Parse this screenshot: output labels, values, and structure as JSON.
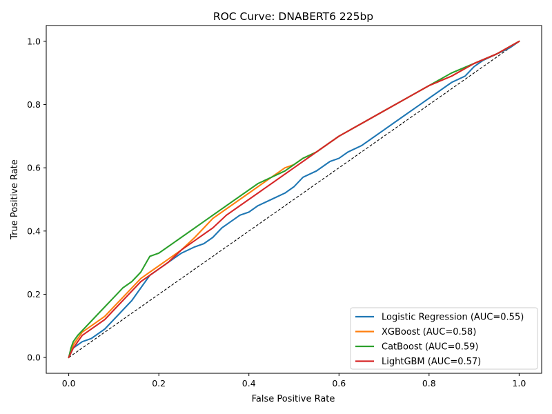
{
  "chart_data": {
    "type": "line",
    "title": "ROC Curve: DNABERT6 225bp",
    "xlabel": "False Positive Rate",
    "ylabel": "True Positive Rate",
    "xlim": [
      -0.05,
      1.05
    ],
    "ylim": [
      -0.05,
      1.05
    ],
    "xticks": [
      0.0,
      0.2,
      0.4,
      0.6,
      0.8,
      1.0
    ],
    "yticks": [
      0.0,
      0.2,
      0.4,
      0.6,
      0.8,
      1.0
    ],
    "tick_labels": [
      "0.0",
      "0.2",
      "0.4",
      "0.6",
      "0.8",
      "1.0"
    ],
    "grid": false,
    "legend_position": "lower right",
    "baseline": {
      "x": [
        0,
        1
      ],
      "y": [
        0,
        1
      ],
      "style": "dashed",
      "color": "#000000"
    },
    "series": [
      {
        "name": "Logistic Regression (AUC=0.55)",
        "color": "#1f77b4",
        "x": [
          0,
          0.01,
          0.03,
          0.05,
          0.08,
          0.1,
          0.12,
          0.14,
          0.16,
          0.18,
          0.2,
          0.22,
          0.25,
          0.28,
          0.3,
          0.32,
          0.34,
          0.36,
          0.38,
          0.4,
          0.42,
          0.45,
          0.48,
          0.5,
          0.52,
          0.55,
          0.58,
          0.6,
          0.62,
          0.65,
          0.68,
          0.7,
          0.72,
          0.75,
          0.78,
          0.8,
          0.82,
          0.85,
          0.88,
          0.9,
          0.92,
          0.95,
          0.98,
          1.0
        ],
        "y": [
          0,
          0.03,
          0.05,
          0.06,
          0.09,
          0.12,
          0.15,
          0.18,
          0.22,
          0.26,
          0.28,
          0.3,
          0.33,
          0.35,
          0.36,
          0.38,
          0.41,
          0.43,
          0.45,
          0.46,
          0.48,
          0.5,
          0.52,
          0.54,
          0.57,
          0.59,
          0.62,
          0.63,
          0.65,
          0.67,
          0.7,
          0.72,
          0.74,
          0.77,
          0.8,
          0.82,
          0.84,
          0.87,
          0.89,
          0.92,
          0.94,
          0.96,
          0.98,
          1.0
        ]
      },
      {
        "name": "XGBoost (AUC=0.58)",
        "color": "#ff7f0e",
        "x": [
          0,
          0.01,
          0.03,
          0.05,
          0.08,
          0.1,
          0.12,
          0.14,
          0.16,
          0.18,
          0.2,
          0.22,
          0.25,
          0.28,
          0.3,
          0.32,
          0.35,
          0.38,
          0.4,
          0.42,
          0.45,
          0.48,
          0.5,
          0.52,
          0.55,
          0.58,
          0.6,
          0.65,
          0.7,
          0.75,
          0.8,
          0.85,
          0.9,
          0.95,
          1.0
        ],
        "y": [
          0,
          0.04,
          0.08,
          0.1,
          0.13,
          0.16,
          0.19,
          0.22,
          0.25,
          0.27,
          0.29,
          0.31,
          0.34,
          0.38,
          0.41,
          0.44,
          0.47,
          0.5,
          0.52,
          0.54,
          0.57,
          0.6,
          0.61,
          0.63,
          0.65,
          0.68,
          0.7,
          0.74,
          0.78,
          0.82,
          0.86,
          0.89,
          0.93,
          0.96,
          1.0
        ]
      },
      {
        "name": "CatBoost (AUC=0.59)",
        "color": "#2ca02c",
        "x": [
          0,
          0.005,
          0.01,
          0.02,
          0.04,
          0.06,
          0.08,
          0.1,
          0.12,
          0.14,
          0.16,
          0.18,
          0.2,
          0.22,
          0.25,
          0.28,
          0.3,
          0.32,
          0.35,
          0.38,
          0.4,
          0.42,
          0.45,
          0.48,
          0.5,
          0.52,
          0.55,
          0.58,
          0.6,
          0.65,
          0.7,
          0.75,
          0.8,
          0.85,
          0.9,
          0.95,
          1.0
        ],
        "y": [
          0,
          0.03,
          0.05,
          0.07,
          0.1,
          0.13,
          0.16,
          0.19,
          0.22,
          0.24,
          0.27,
          0.32,
          0.33,
          0.35,
          0.38,
          0.41,
          0.43,
          0.45,
          0.48,
          0.51,
          0.53,
          0.55,
          0.57,
          0.59,
          0.61,
          0.63,
          0.65,
          0.68,
          0.7,
          0.74,
          0.78,
          0.82,
          0.86,
          0.9,
          0.93,
          0.96,
          1.0
        ]
      },
      {
        "name": "LightGBM (AUC=0.57)",
        "color": "#d62728",
        "x": [
          0,
          0.01,
          0.03,
          0.05,
          0.08,
          0.1,
          0.12,
          0.14,
          0.16,
          0.18,
          0.2,
          0.22,
          0.25,
          0.28,
          0.3,
          0.32,
          0.35,
          0.38,
          0.4,
          0.42,
          0.45,
          0.48,
          0.5,
          0.52,
          0.55,
          0.58,
          0.6,
          0.65,
          0.7,
          0.75,
          0.8,
          0.85,
          0.9,
          0.95,
          1.0
        ],
        "y": [
          0,
          0.03,
          0.07,
          0.09,
          0.12,
          0.15,
          0.18,
          0.21,
          0.24,
          0.26,
          0.28,
          0.3,
          0.34,
          0.37,
          0.39,
          0.41,
          0.45,
          0.48,
          0.5,
          0.52,
          0.55,
          0.58,
          0.6,
          0.62,
          0.65,
          0.68,
          0.7,
          0.74,
          0.78,
          0.82,
          0.86,
          0.89,
          0.93,
          0.96,
          1.0
        ]
      }
    ]
  }
}
